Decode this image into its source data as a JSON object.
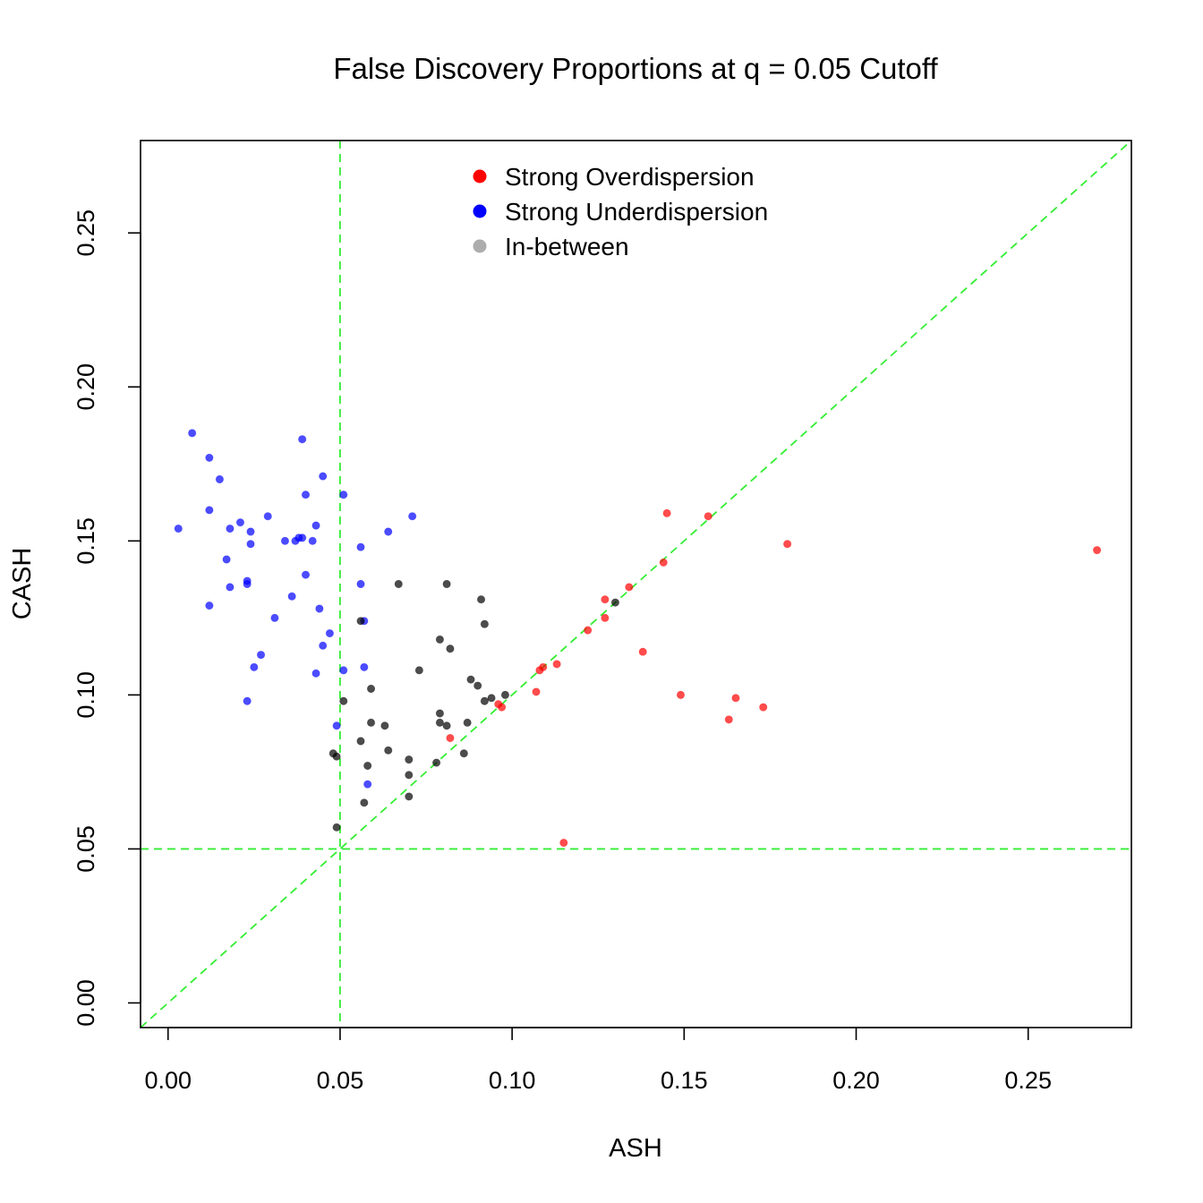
{
  "chart_data": {
    "type": "scatter",
    "title": "False Discovery Proportions at q = 0.05 Cutoff",
    "xlabel": "ASH",
    "ylabel": "CASH",
    "xlim": [
      -0.008,
      0.28
    ],
    "ylim": [
      -0.008,
      0.28
    ],
    "x_ticks": [
      "0.00",
      "0.05",
      "0.10",
      "0.15",
      "0.20",
      "0.25"
    ],
    "y_ticks": [
      "0.00",
      "0.05",
      "0.10",
      "0.15",
      "0.20",
      "0.25"
    ],
    "grid": false,
    "legend_position": "top-center",
    "reference_lines": {
      "color": "#33ee33",
      "vertical_x": 0.05,
      "horizontal_y": 0.05,
      "diagonal": "y = x"
    },
    "series": [
      {
        "name": "Strong Overdispersion",
        "color": "#ff0000",
        "points": [
          [
            0.27,
            0.147
          ],
          [
            0.18,
            0.149
          ],
          [
            0.173,
            0.096
          ],
          [
            0.165,
            0.099
          ],
          [
            0.163,
            0.092
          ],
          [
            0.157,
            0.158
          ],
          [
            0.149,
            0.1
          ],
          [
            0.145,
            0.159
          ],
          [
            0.144,
            0.143
          ],
          [
            0.138,
            0.114
          ],
          [
            0.134,
            0.135
          ],
          [
            0.127,
            0.131
          ],
          [
            0.127,
            0.125
          ],
          [
            0.122,
            0.121
          ],
          [
            0.115,
            0.052
          ],
          [
            0.113,
            0.11
          ],
          [
            0.108,
            0.108
          ],
          [
            0.107,
            0.101
          ],
          [
            0.097,
            0.096
          ],
          [
            0.096,
            0.097
          ],
          [
            0.082,
            0.086
          ],
          [
            0.109,
            0.109
          ]
        ]
      },
      {
        "name": "Strong Underdispersion",
        "color": "#0000ff",
        "points": [
          [
            0.003,
            0.154
          ],
          [
            0.007,
            0.185
          ],
          [
            0.012,
            0.177
          ],
          [
            0.012,
            0.16
          ],
          [
            0.012,
            0.129
          ],
          [
            0.015,
            0.17
          ],
          [
            0.017,
            0.144
          ],
          [
            0.018,
            0.154
          ],
          [
            0.018,
            0.135
          ],
          [
            0.021,
            0.156
          ],
          [
            0.023,
            0.137
          ],
          [
            0.023,
            0.136
          ],
          [
            0.024,
            0.153
          ],
          [
            0.024,
            0.149
          ],
          [
            0.023,
            0.098
          ],
          [
            0.025,
            0.109
          ],
          [
            0.027,
            0.113
          ],
          [
            0.029,
            0.158
          ],
          [
            0.031,
            0.125
          ],
          [
            0.034,
            0.15
          ],
          [
            0.036,
            0.132
          ],
          [
            0.037,
            0.15
          ],
          [
            0.038,
            0.151
          ],
          [
            0.039,
            0.151
          ],
          [
            0.039,
            0.183
          ],
          [
            0.04,
            0.165
          ],
          [
            0.04,
            0.139
          ],
          [
            0.042,
            0.15
          ],
          [
            0.043,
            0.155
          ],
          [
            0.043,
            0.107
          ],
          [
            0.044,
            0.128
          ],
          [
            0.045,
            0.171
          ],
          [
            0.045,
            0.116
          ],
          [
            0.047,
            0.12
          ],
          [
            0.049,
            0.09
          ],
          [
            0.051,
            0.165
          ],
          [
            0.051,
            0.108
          ],
          [
            0.056,
            0.148
          ],
          [
            0.056,
            0.136
          ],
          [
            0.057,
            0.124
          ],
          [
            0.057,
            0.109
          ],
          [
            0.058,
            0.071
          ],
          [
            0.064,
            0.153
          ],
          [
            0.071,
            0.158
          ]
        ]
      },
      {
        "name": "In-between",
        "color": "#000000",
        "points": [
          [
            0.048,
            0.081
          ],
          [
            0.049,
            0.08
          ],
          [
            0.049,
            0.057
          ],
          [
            0.051,
            0.098
          ],
          [
            0.056,
            0.085
          ],
          [
            0.056,
            0.124
          ],
          [
            0.057,
            0.065
          ],
          [
            0.058,
            0.077
          ],
          [
            0.059,
            0.102
          ],
          [
            0.059,
            0.091
          ],
          [
            0.063,
            0.09
          ],
          [
            0.064,
            0.082
          ],
          [
            0.067,
            0.136
          ],
          [
            0.07,
            0.067
          ],
          [
            0.07,
            0.074
          ],
          [
            0.07,
            0.079
          ],
          [
            0.073,
            0.108
          ],
          [
            0.078,
            0.078
          ],
          [
            0.079,
            0.118
          ],
          [
            0.079,
            0.094
          ],
          [
            0.079,
            0.091
          ],
          [
            0.081,
            0.09
          ],
          [
            0.081,
            0.136
          ],
          [
            0.082,
            0.115
          ],
          [
            0.086,
            0.081
          ],
          [
            0.087,
            0.091
          ],
          [
            0.088,
            0.105
          ],
          [
            0.09,
            0.103
          ],
          [
            0.091,
            0.131
          ],
          [
            0.092,
            0.123
          ],
          [
            0.092,
            0.098
          ],
          [
            0.094,
            0.099
          ],
          [
            0.098,
            0.1
          ],
          [
            0.13,
            0.13
          ]
        ]
      }
    ]
  }
}
